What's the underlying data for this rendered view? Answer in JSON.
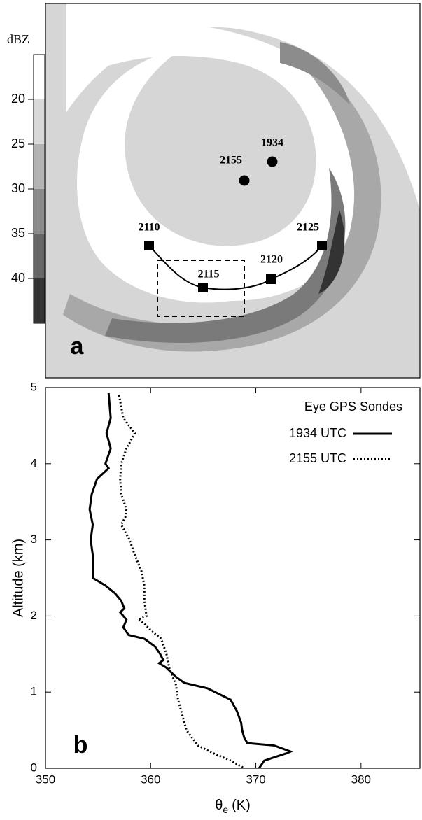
{
  "panel_a": {
    "colorbar_label": "dBZ",
    "colorbar_lim": [
      15,
      45
    ],
    "colorbar_ticks": [
      20,
      25,
      30,
      35,
      40
    ],
    "sonde_labels": [
      "1934",
      "2155"
    ],
    "track_labels": [
      "2110",
      "2115",
      "2120",
      "2125"
    ],
    "panel_label": "a"
  },
  "chart_data": {
    "type": "line",
    "panel_label": "b",
    "xlabel": {
      "symbol": "θ",
      "subscript": "e",
      "unit": "(K)"
    },
    "ylabel": "Altitude (km)",
    "xlim": [
      350,
      385.6
    ],
    "xticks": [
      350,
      360,
      370,
      380
    ],
    "ylim": [
      0,
      5
    ],
    "yticks": [
      0,
      1,
      2,
      3,
      4,
      5
    ],
    "legend_title": "Eye GPS Sondes",
    "legend": "upper right",
    "series": [
      {
        "name": "1934 UTC",
        "color": "#000000",
        "dash": "solid",
        "x": [
          356.0,
          356.2,
          355.8,
          356.2,
          355.7,
          356.0,
          354.9,
          354.4,
          354.2,
          354.5,
          354.3,
          354.5,
          354.5,
          354.5,
          355.7,
          356.6,
          357.2,
          357.5,
          357.1,
          357.7,
          357.4,
          357.9,
          359.4,
          360.4,
          360.9,
          361.2,
          360.8,
          361.5,
          362.4,
          363.2,
          365.4,
          367.6,
          368.2,
          368.6,
          368.7,
          368.9,
          369.2,
          371.7,
          373.3,
          373.0,
          370.8,
          370.3
        ],
        "y": [
          4.93,
          4.6,
          4.4,
          4.2,
          4.0,
          3.94,
          3.8,
          3.6,
          3.4,
          3.2,
          3.0,
          2.8,
          2.6,
          2.5,
          2.4,
          2.3,
          2.2,
          2.1,
          2.05,
          1.95,
          1.85,
          1.75,
          1.7,
          1.6,
          1.5,
          1.42,
          1.38,
          1.32,
          1.2,
          1.12,
          1.05,
          0.9,
          0.75,
          0.6,
          0.5,
          0.4,
          0.33,
          0.3,
          0.22,
          0.2,
          0.1,
          0.0
        ]
      },
      {
        "name": "2155 UTC",
        "color": "#000000",
        "dash": "dotted",
        "x": [
          357.0,
          357.4,
          358.5,
          357.7,
          357.2,
          357.1,
          357.2,
          357.7,
          357.6,
          357.2,
          358.0,
          358.5,
          359.1,
          359.4,
          359.4,
          359.6,
          358.8,
          359.4,
          360.1,
          361.0,
          361.5,
          361.8,
          362.4,
          362.6,
          363.0,
          363.4,
          364.5,
          365.9,
          367.6,
          368.9
        ],
        "y": [
          4.9,
          4.6,
          4.4,
          4.2,
          4.0,
          3.8,
          3.6,
          3.4,
          3.3,
          3.2,
          3.0,
          2.8,
          2.6,
          2.4,
          2.2,
          2.0,
          1.95,
          1.9,
          1.8,
          1.7,
          1.5,
          1.3,
          1.1,
          0.9,
          0.7,
          0.5,
          0.3,
          0.2,
          0.1,
          0.0
        ]
      }
    ]
  }
}
